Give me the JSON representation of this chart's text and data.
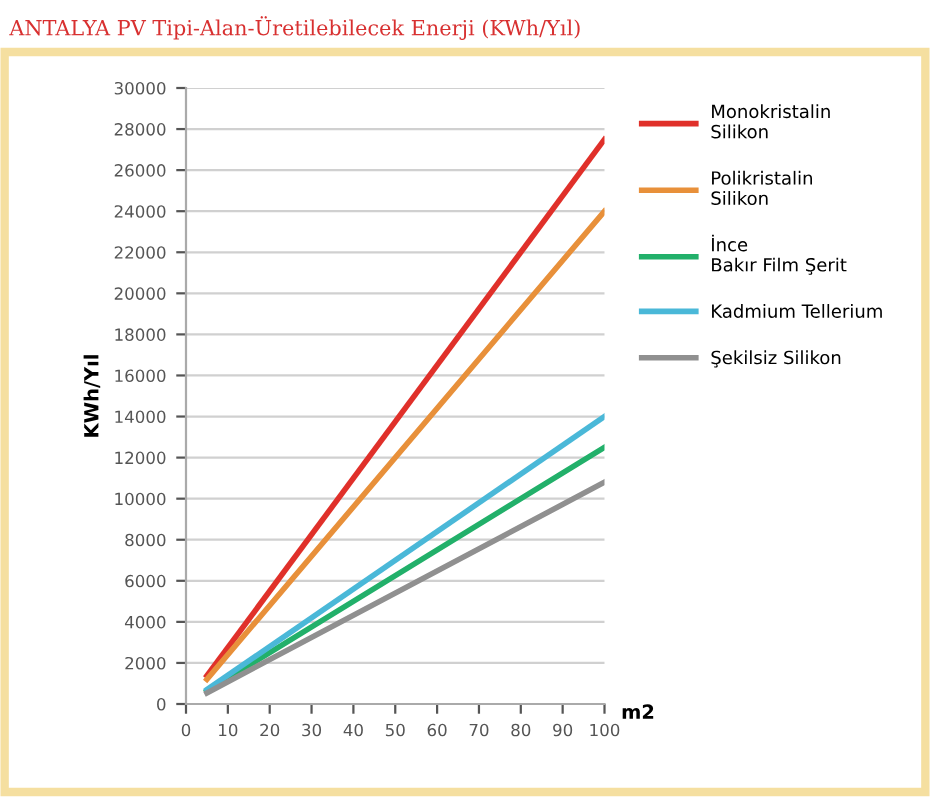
{
  "chart_data": {
    "type": "line",
    "title": "ANTALYA PV Tipi-Alan-Üretilebilecek Enerji (KWh/Yıl)",
    "xlabel": "m2",
    "ylabel": "KWh/Yıl",
    "x": [
      5,
      100
    ],
    "series": [
      {
        "name": "Monokristalin Silikon",
        "color": "#e0302a",
        "values": [
          1375,
          27500
        ]
      },
      {
        "name": "Polikristalin Silikon",
        "color": "#e8903a",
        "values": [
          1200,
          24000
        ]
      },
      {
        "name": "İnce Bakır Film Şerit",
        "color": "#22b06a",
        "values": [
          625,
          12500
        ]
      },
      {
        "name": "Kadmium Tellerium",
        "color": "#4ab8d8",
        "values": [
          700,
          14000
        ]
      },
      {
        "name": "Şekilsiz Silikon",
        "color": "#909090",
        "values": [
          540,
          10800
        ]
      }
    ],
    "xlim": [
      0,
      100
    ],
    "xticks": [
      0,
      10,
      20,
      30,
      40,
      50,
      60,
      70,
      80,
      90,
      100
    ],
    "ylim": [
      0,
      30000
    ],
    "yticks": [
      0,
      2000,
      4000,
      6000,
      8000,
      10000,
      12000,
      14000,
      16000,
      18000,
      20000,
      22000,
      24000,
      26000,
      28000,
      30000
    ],
    "grid": "y",
    "legend": "right",
    "marker": "none",
    "line_style": "solid"
  }
}
